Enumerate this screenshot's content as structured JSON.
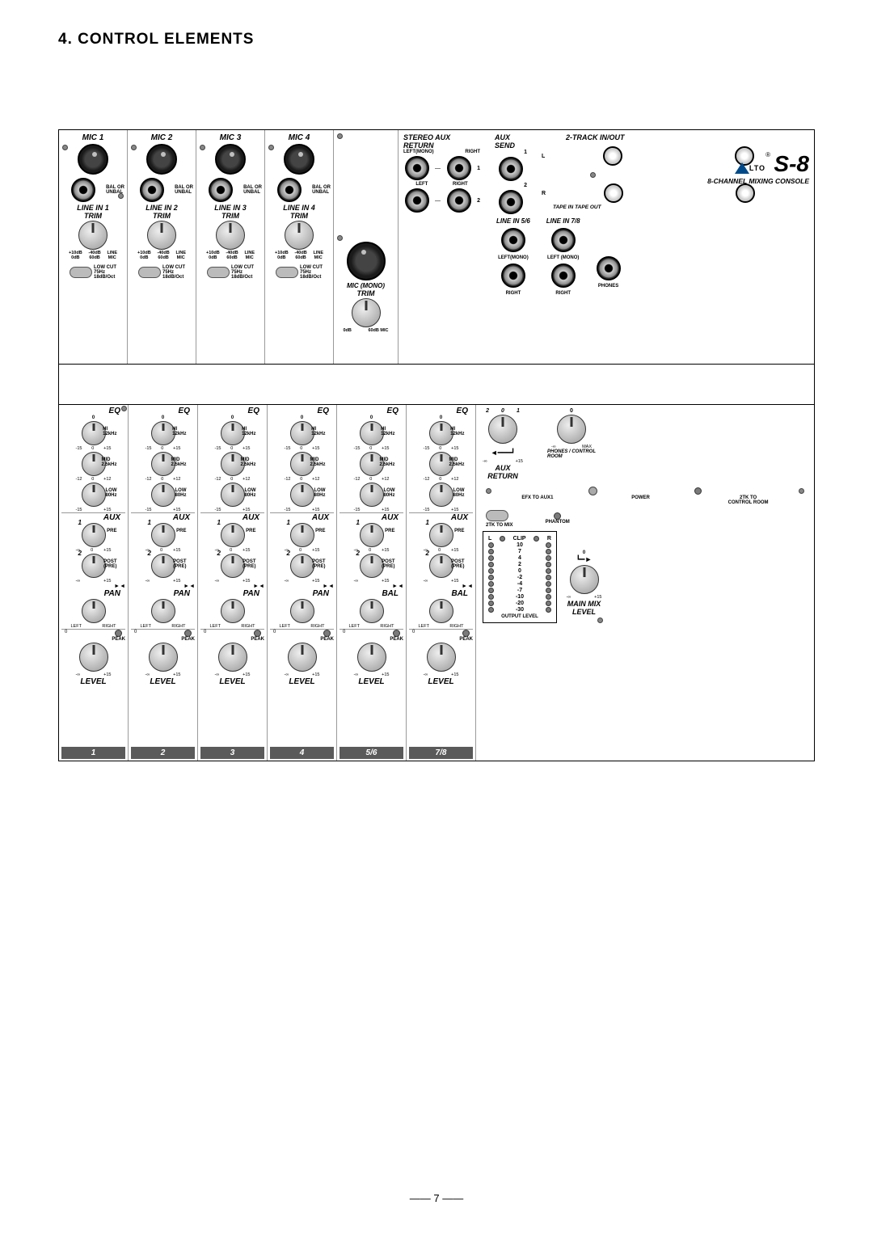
{
  "section_title": "4. CONTROL ELEMENTS",
  "page_number": "7",
  "brand": {
    "logo_text": "LTO",
    "reg": "®",
    "model": "S-8",
    "subtitle": "8-CHANNEL MIXING CONSOLE",
    "tri_color": "#004a8a"
  },
  "mono_channels": [
    {
      "n": "1",
      "mic": "MIC 1",
      "line": "LINE IN 1"
    },
    {
      "n": "2",
      "mic": "MIC 2",
      "line": "LINE IN 2"
    },
    {
      "n": "3",
      "mic": "MIC 3",
      "line": "LINE IN 3"
    },
    {
      "n": "4",
      "mic": "MIC 4",
      "line": "LINE IN 4"
    }
  ],
  "mono_labels": {
    "bal": "BAL OR\nUNBAL",
    "trim": "TRIM",
    "trim_scale": {
      "l": "+10dB\n0dB",
      "c": "-40dB\n60dB",
      "r": "LINE\nMIC"
    },
    "lowcut": "LOW CUT\n75Hz\n18dB/Oct"
  },
  "stereo_top": {
    "mic_mono": "MIC (MONO)",
    "trim": "TRIM",
    "scale": {
      "l": "0dB",
      "r": "60dB  MIC"
    }
  },
  "aux_return": {
    "title": "STEREO AUX RETURN",
    "lm": "LEFT(MONO)",
    "r": "RIGHT",
    "one": "1",
    "two": "2",
    "left": "LEFT",
    "right": "RIGHT"
  },
  "aux_send": {
    "title": "AUX SEND",
    "one": "1",
    "two": "2"
  },
  "line_in": {
    "a": "LINE IN 5/6",
    "b": "LINE IN 7/8",
    "lm": "LEFT(MONO)",
    "r": "RIGHT",
    "lm2": "LEFT (MONO)"
  },
  "two_track": {
    "title": "2-TRACK IN/OUT",
    "l": "L",
    "r": "R",
    "in": "TAPE IN",
    "out": "TAPE OUT"
  },
  "phones": "PHONES",
  "eq": {
    "title": "EQ",
    "hi": {
      "name": "HI",
      "freq": "12kHz",
      "l": "-15",
      "c": "0",
      "r": "+15"
    },
    "mid": {
      "name": "MID",
      "freq": "2.5kHz",
      "l": "-12",
      "c": "0",
      "r": "+12"
    },
    "low": {
      "name": "LOW",
      "freq": "80Hz",
      "l": "-15",
      "r": "+15"
    }
  },
  "aux": {
    "title": "AUX",
    "pre": "PRE",
    "post": "POST\n(PRE)",
    "one": "1",
    "two": "2",
    "scale": {
      "l": "-∞",
      "c": "0",
      "r": "+15"
    },
    "scale2": {
      "l": "-∞",
      "r": "+15"
    },
    "mute": "►◄"
  },
  "pan": {
    "title": "PAN",
    "l": "LEFT",
    "r": "RIGHT"
  },
  "bal": {
    "title": "BAL",
    "l": "LEFT",
    "r": "RIGHT"
  },
  "level": {
    "title": "LEVEL",
    "peak": "PEAK",
    "zero": "0",
    "l": "-∞",
    "r": "+15"
  },
  "strip_nums": [
    "1",
    "2",
    "3",
    "4",
    "5/6",
    "7/8"
  ],
  "master": {
    "aux_return": "AUX\nRETURN",
    "phones_ctrl": "PHONES / CONTROL\nROOM",
    "scale": {
      "l": "-∞",
      "r": "+15",
      "max": "MAX",
      "two": "2",
      "one": "1"
    },
    "efx": "EFX TO AUX1",
    "power": "POWER",
    "twotk_ctrl": "2TK TO\nCONTROL ROOM",
    "twotk_mix": "2TK TO MIX",
    "phantom": "PHANTOM",
    "meter_title": {
      "l": "L",
      "r": "R",
      "clip": "CLIP"
    },
    "meter_vals": [
      "10",
      "7",
      "4",
      "2",
      "0",
      "-2",
      "-4",
      "-7",
      "-10",
      "-20",
      "-30"
    ],
    "output": "OUTPUT LEVEL",
    "main_mix": "MAIN MIX\nLEVEL",
    "zero": "0"
  },
  "colors": {
    "frame": "#000000",
    "divider": "#9a9a9a",
    "strip_bg": "#5a5a5a"
  }
}
